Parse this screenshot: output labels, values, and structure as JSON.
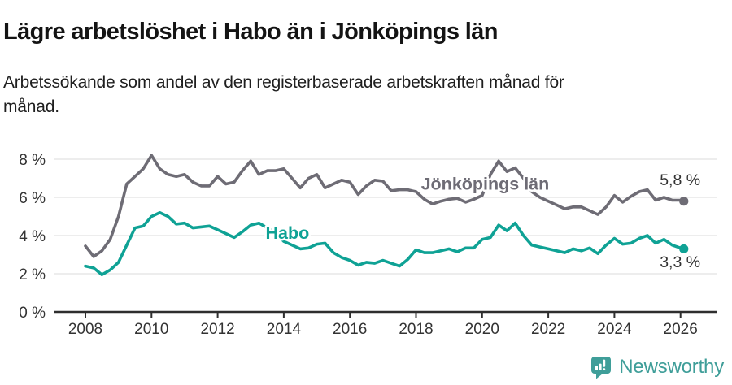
{
  "header": {
    "title": "Lägre arbetslöshet i Habo än i Jönköpings län",
    "subtitle": "Arbetssökande som andel av den registerbaserade arbetskraften månad för månad."
  },
  "footer": {
    "brand": "Newsworthy"
  },
  "colors": {
    "habo_line": "#0FA295",
    "county_line": "#6E6C75",
    "grid": "#E2E2E2",
    "axis": "#2E2E2E",
    "tick_text": "#333333",
    "brand_teal": "#3F9E99"
  },
  "chart_data": {
    "type": "line",
    "title": "Lägre arbetslöshet i Habo än i Jönköpings län",
    "subtitle": "Arbetssökande som andel av den registerbaserade arbetskraften månad för månad.",
    "unit": "%",
    "xlabel": "",
    "ylabel": "",
    "grid": "horizontal",
    "legend": "inline-labels",
    "ylim": [
      0,
      8.6
    ],
    "xlim": [
      2007.1,
      2027.1
    ],
    "yticks": [
      0,
      2,
      4,
      6,
      8
    ],
    "ytick_labels": [
      "0 %",
      "2 %",
      "4 %",
      "6 %",
      "8 %"
    ],
    "xticks": [
      2008,
      2010,
      2012,
      2014,
      2016,
      2018,
      2020,
      2022,
      2024,
      2026
    ],
    "xtick_labels": [
      "2008",
      "2010",
      "2012",
      "2014",
      "2016",
      "2018",
      "2020",
      "2022",
      "2024",
      "2026"
    ],
    "x": [
      2008.0,
      2008.25,
      2008.5,
      2008.75,
      2009.0,
      2009.25,
      2009.5,
      2009.75,
      2010.0,
      2010.25,
      2010.5,
      2010.75,
      2011.0,
      2011.25,
      2011.5,
      2011.75,
      2012.0,
      2012.25,
      2012.5,
      2012.75,
      2013.0,
      2013.25,
      2013.5,
      2013.75,
      2014.0,
      2014.25,
      2014.5,
      2014.75,
      2015.0,
      2015.25,
      2015.5,
      2015.75,
      2016.0,
      2016.25,
      2016.5,
      2016.75,
      2017.0,
      2017.25,
      2017.5,
      2017.75,
      2018.0,
      2018.25,
      2018.5,
      2018.75,
      2019.0,
      2019.25,
      2019.5,
      2019.75,
      2020.0,
      2020.25,
      2020.5,
      2020.75,
      2021.0,
      2021.25,
      2021.5,
      2021.75,
      2022.0,
      2022.25,
      2022.5,
      2022.75,
      2023.0,
      2023.25,
      2023.5,
      2023.75,
      2024.0,
      2024.25,
      2024.5,
      2024.75,
      2025.0,
      2025.25,
      2025.5,
      2025.75,
      2026.0,
      2026.1
    ],
    "series": [
      {
        "name": "Jönköpings län",
        "color": "#6E6C75",
        "end_value": 5.8,
        "end_label": "5,8 %",
        "values": [
          3.45,
          2.9,
          3.2,
          3.8,
          5.0,
          6.7,
          7.1,
          7.5,
          8.2,
          7.5,
          7.2,
          7.1,
          7.2,
          6.8,
          6.6,
          6.6,
          7.1,
          6.7,
          6.8,
          7.4,
          7.9,
          7.2,
          7.4,
          7.4,
          7.5,
          7.0,
          6.5,
          7.0,
          7.2,
          6.5,
          6.7,
          6.9,
          6.8,
          6.15,
          6.6,
          6.9,
          6.85,
          6.35,
          6.4,
          6.4,
          6.3,
          5.9,
          5.65,
          5.8,
          5.9,
          5.95,
          5.75,
          5.9,
          6.1,
          7.2,
          7.9,
          7.35,
          7.55,
          7.0,
          6.3,
          6.0,
          5.8,
          5.6,
          5.4,
          5.5,
          5.5,
          5.3,
          5.1,
          5.5,
          6.1,
          5.75,
          6.05,
          6.3,
          6.4,
          5.85,
          6.0,
          5.85,
          5.85,
          5.8
        ]
      },
      {
        "name": "Habo",
        "color": "#0FA295",
        "end_value": 3.3,
        "end_label": "3,3 %",
        "values": [
          2.4,
          2.3,
          1.95,
          2.2,
          2.6,
          3.5,
          4.4,
          4.5,
          5.0,
          5.2,
          5.0,
          4.6,
          4.65,
          4.4,
          4.45,
          4.5,
          4.3,
          4.1,
          3.9,
          4.2,
          4.55,
          4.65,
          4.4,
          4.15,
          3.7,
          3.5,
          3.3,
          3.35,
          3.55,
          3.6,
          3.1,
          2.85,
          2.7,
          2.45,
          2.6,
          2.55,
          2.7,
          2.55,
          2.4,
          2.75,
          3.25,
          3.1,
          3.1,
          3.2,
          3.3,
          3.15,
          3.35,
          3.35,
          3.8,
          3.9,
          4.55,
          4.25,
          4.65,
          4.0,
          3.5,
          3.4,
          3.3,
          3.2,
          3.1,
          3.3,
          3.2,
          3.35,
          3.05,
          3.5,
          3.85,
          3.55,
          3.6,
          3.85,
          4.0,
          3.6,
          3.8,
          3.5,
          3.35,
          3.3
        ]
      }
    ],
    "inline_labels": [
      {
        "text": "Jönköpings län",
        "x": 2018.15,
        "y": 6.4,
        "color": "#6E6C75"
      },
      {
        "text": "Habo",
        "x": 2013.45,
        "y": 3.83,
        "color": "#0FA295"
      }
    ],
    "end_labels": [
      {
        "text": "5,8 %",
        "x": 2026.6,
        "y": 6.63
      },
      {
        "text": "3,3 %",
        "x": 2026.6,
        "y": 2.34
      }
    ]
  }
}
